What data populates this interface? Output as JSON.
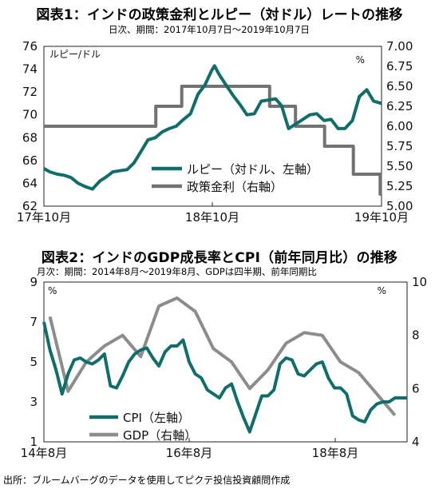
{
  "source": "出所：ブルームバーグのデータを使用してピクテ投信投資顧問作成",
  "chart_data": [
    {
      "type": "line",
      "title": "図表1：インドの政策金利とルピー（対ドル）レートの推移",
      "subtitle": "日次、期間：2017年10月7日～2019年10月7日",
      "left_unit": "ルピー/ドル",
      "right_unit": "%",
      "left_axis": {
        "ticks": [
          "62",
          "64",
          "66",
          "68",
          "70",
          "72",
          "74",
          "76"
        ],
        "ylim": [
          62,
          76
        ]
      },
      "right_axis": {
        "ticks": [
          "5.00",
          "5.25",
          "5.50",
          "5.75",
          "6.00",
          "6.25",
          "6.50",
          "6.75",
          "7.00"
        ],
        "ylim": [
          5.0,
          7.0
        ]
      },
      "x_ticks": [
        "17年10月",
        "18年10月",
        "19年10月"
      ],
      "x_range": [
        "2017-10-07",
        "2019-10-07"
      ],
      "series": [
        {
          "name": "ルピー（対ドル、左軸）",
          "axis": "left",
          "color": "#0f6e6a",
          "x": [
            "2017-10-07",
            "2017-10-20",
            "2017-11-05",
            "2017-11-20",
            "2017-12-05",
            "2017-12-20",
            "2018-01-05",
            "2018-01-20",
            "2018-02-05",
            "2018-02-20",
            "2018-03-05",
            "2018-03-20",
            "2018-04-05",
            "2018-04-20",
            "2018-05-05",
            "2018-05-20",
            "2018-06-05",
            "2018-06-20",
            "2018-07-05",
            "2018-07-20",
            "2018-08-05",
            "2018-08-20",
            "2018-09-05",
            "2018-09-20",
            "2018-10-05",
            "2018-10-11",
            "2018-10-20",
            "2018-11-05",
            "2018-11-20",
            "2018-12-05",
            "2018-12-20",
            "2019-01-05",
            "2019-01-20",
            "2019-02-05",
            "2019-02-20",
            "2019-03-05",
            "2019-03-20",
            "2019-04-05",
            "2019-04-20",
            "2019-05-05",
            "2019-05-20",
            "2019-06-05",
            "2019-06-20",
            "2019-07-05",
            "2019-07-20",
            "2019-08-05",
            "2019-08-20",
            "2019-09-05",
            "2019-09-20",
            "2019-10-07"
          ],
          "y": [
            65.3,
            65.0,
            64.8,
            64.7,
            64.5,
            64.0,
            63.7,
            63.5,
            64.2,
            64.6,
            65.0,
            65.1,
            65.2,
            65.8,
            66.8,
            67.8,
            68.0,
            68.5,
            68.8,
            69.0,
            69.6,
            70.1,
            71.8,
            72.6,
            73.9,
            74.3,
            73.6,
            72.6,
            71.7,
            70.9,
            70.0,
            70.1,
            71.2,
            71.3,
            71.4,
            70.8,
            68.8,
            69.2,
            69.6,
            70.0,
            70.1,
            69.5,
            69.6,
            68.8,
            68.8,
            69.5,
            71.6,
            72.2,
            71.2,
            71.0
          ]
        },
        {
          "name": "政策金利（右軸）",
          "axis": "right",
          "color": "#727272",
          "step": true,
          "x": [
            "2017-10-07",
            "2018-06-06",
            "2018-08-01",
            "2019-02-07",
            "2019-04-04",
            "2019-06-06",
            "2019-08-07",
            "2019-10-04",
            "2019-10-07"
          ],
          "y": [
            6.0,
            6.25,
            6.5,
            6.25,
            6.0,
            5.75,
            5.4,
            5.15,
            5.15
          ]
        }
      ]
    },
    {
      "type": "line",
      "title": "図表2：インドのGDP成長率とCPI（前年同月比）の推移",
      "subtitle": "月次：期間：2014年8月～2019年8月、GDPは四半期、前年同期比",
      "left_unit": "%",
      "right_unit": "%",
      "left_axis": {
        "ticks": [
          "1",
          "3",
          "5",
          "7",
          "9"
        ],
        "ylim": [
          1,
          9
        ]
      },
      "right_axis": {
        "ticks": [
          "4",
          "6",
          "8",
          "10"
        ],
        "ylim": [
          4,
          10
        ]
      },
      "x_ticks": [
        "14年8月",
        "16年8月",
        "18年8月"
      ],
      "x_range": [
        "2014-08",
        "2019-08"
      ],
      "series": [
        {
          "name": "CPI（左軸）",
          "axis": "left",
          "color": "#0f6e6a",
          "x": [
            "2014-08",
            "2014-09",
            "2014-10",
            "2014-11",
            "2014-12",
            "2015-01",
            "2015-02",
            "2015-03",
            "2015-04",
            "2015-05",
            "2015-06",
            "2015-07",
            "2015-08",
            "2015-09",
            "2015-10",
            "2015-11",
            "2015-12",
            "2016-01",
            "2016-02",
            "2016-03",
            "2016-04",
            "2016-05",
            "2016-06",
            "2016-07",
            "2016-08",
            "2016-09",
            "2016-10",
            "2016-11",
            "2016-12",
            "2017-01",
            "2017-02",
            "2017-03",
            "2017-04",
            "2017-05",
            "2017-06",
            "2017-07",
            "2017-08",
            "2017-09",
            "2017-10",
            "2017-11",
            "2017-12",
            "2018-01",
            "2018-02",
            "2018-03",
            "2018-04",
            "2018-05",
            "2018-06",
            "2018-07",
            "2018-08",
            "2018-09",
            "2018-10",
            "2018-11",
            "2018-12",
            "2019-01",
            "2019-02",
            "2019-03",
            "2019-04",
            "2019-05",
            "2019-06",
            "2019-07",
            "2019-08"
          ],
          "y": [
            7.0,
            5.6,
            4.6,
            3.4,
            4.4,
            5.1,
            5.2,
            5.0,
            4.9,
            5.1,
            5.4,
            3.8,
            3.7,
            4.3,
            5.0,
            5.4,
            5.6,
            5.7,
            5.2,
            4.8,
            5.5,
            5.8,
            5.8,
            6.1,
            5.0,
            4.4,
            4.2,
            3.6,
            3.4,
            3.2,
            3.7,
            3.9,
            3.0,
            2.2,
            1.5,
            2.4,
            3.3,
            3.3,
            3.6,
            4.9,
            5.2,
            5.1,
            4.4,
            4.3,
            4.6,
            4.9,
            5.0,
            4.2,
            3.7,
            3.7,
            3.4,
            2.3,
            2.1,
            2.0,
            2.6,
            2.9,
            3.0,
            3.0,
            3.2,
            3.2,
            3.2
          ]
        },
        {
          "name": "GDP（右軸）",
          "axis": "right",
          "color": "#8c8c8c",
          "x": [
            "2014-09",
            "2014-12",
            "2015-03",
            "2015-06",
            "2015-09",
            "2015-12",
            "2016-03",
            "2016-06",
            "2016-09",
            "2016-12",
            "2017-03",
            "2017-06",
            "2017-09",
            "2017-12",
            "2018-03",
            "2018-06",
            "2018-09",
            "2018-12",
            "2019-03",
            "2019-06"
          ],
          "y": [
            8.7,
            5.9,
            7.0,
            7.6,
            8.0,
            7.2,
            9.1,
            9.4,
            8.9,
            7.5,
            7.0,
            6.0,
            6.7,
            7.7,
            8.1,
            8.0,
            7.0,
            6.6,
            5.8,
            5.0
          ]
        }
      ]
    }
  ]
}
